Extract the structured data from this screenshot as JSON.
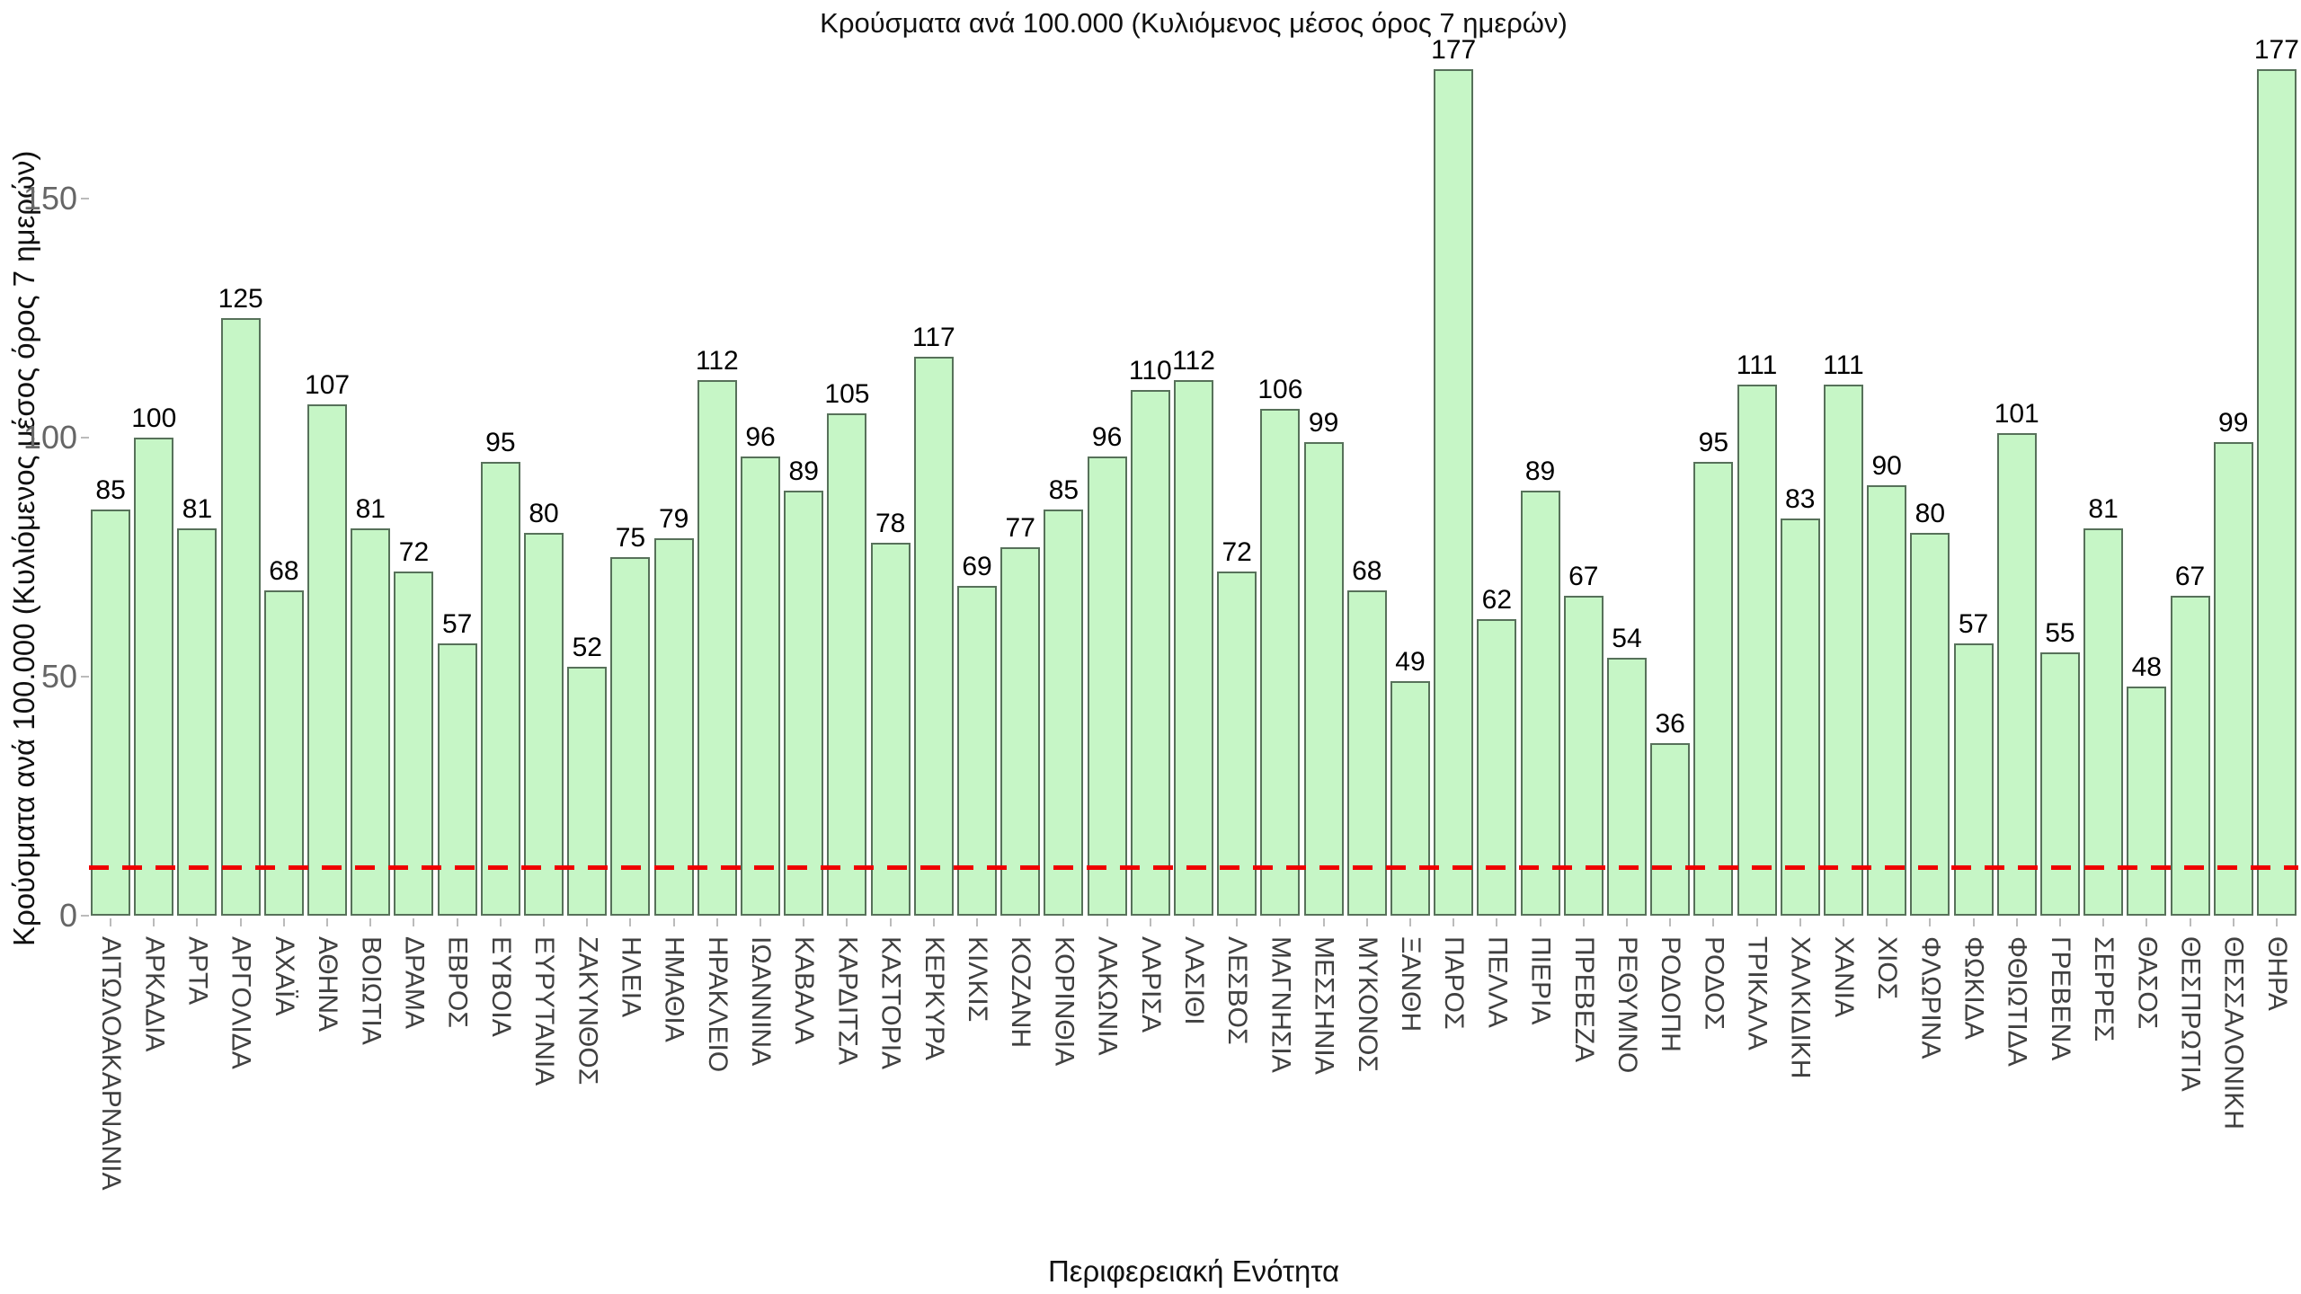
{
  "chart_data": {
    "type": "bar",
    "title": "Κρούσματα ανά 100.000 (Κυλιόμενος μέσος όρος 7 ημερών)",
    "xlabel": "Περιφερειακή Ενότητα",
    "ylabel": "Κρούσματα ανά 100.000 (Κυλιόμενος μέσος όρος 7 ημερών)",
    "categories": [
      "ΑΙΤΩΛΟΑΚΑΡΝΑΝΙΑ",
      "ΑΡΚΑΔΙΑ",
      "ΑΡΤΑ",
      "ΑΡΓΟΛΙΔΑ",
      "ΑΧΑΪΑ",
      "ΑΘΗΝΑ",
      "ΒΟΙΩΤΙΑ",
      "ΔΡΑΜΑ",
      "ΕΒΡΟΣ",
      "ΕΥΒΟΙΑ",
      "ΕΥΡΥΤΑΝΙΑ",
      "ΖΑΚΥΝΘΟΣ",
      "ΗΛΕΙΑ",
      "ΗΜΑΘΙΑ",
      "ΗΡΑΚΛΕΙΟ",
      "ΙΩΑΝΝΙΝΑ",
      "ΚΑΒΑΛΑ",
      "ΚΑΡΔΙΤΣΑ",
      "ΚΑΣΤΟΡΙΑ",
      "ΚΕΡΚΥΡΑ",
      "ΚΙΛΚΙΣ",
      "ΚΟΖΑΝΗ",
      "ΚΟΡΙΝΘΙΑ",
      "ΛΑΚΩΝΙΑ",
      "ΛΑΡΙΣΑ",
      "ΛΑΣΙΘΙ",
      "ΛΕΣΒΟΣ",
      "ΜΑΓΝΗΣΙΑ",
      "ΜΕΣΣΗΝΙΑ",
      "ΜΥΚΟΝΟΣ",
      "ΞΑΝΘΗ",
      "ΠΑΡΟΣ",
      "ΠΕΛΛΑ",
      "ΠΙΕΡΙΑ",
      "ΠΡΕΒΕΖΑ",
      "ΡΕΘΥΜΝΟ",
      "ΡΟΔΟΠΗ",
      "ΡΟΔΟΣ",
      "ΤΡΙΚΑΛΑ",
      "ΧΑΛΚΙΔΙΚΗ",
      "ΧΑΝΙΑ",
      "ΧΙΟΣ",
      "ΦΛΩΡΙΝΑ",
      "ΦΩΚΙΔΑ",
      "ΦΘΙΩΤΙΔΑ",
      "ΓΡΕΒΕΝΑ",
      "ΣΕΡΡΕΣ",
      "ΘΑΣΟΣ",
      "ΘΕΣΠΡΩΤΙΑ",
      "ΘΕΣΣΑΛΟΝΙΚΗ",
      "ΘΗΡΑ"
    ],
    "values": [
      85,
      100,
      81,
      125,
      68,
      107,
      81,
      72,
      57,
      95,
      80,
      52,
      75,
      79,
      112,
      96,
      89,
      105,
      78,
      117,
      69,
      77,
      85,
      96,
      110,
      112,
      72,
      106,
      99,
      68,
      49,
      177,
      62,
      89,
      67,
      54,
      36,
      95,
      111,
      83,
      111,
      90,
      80,
      57,
      101,
      55,
      81,
      48,
      67,
      99,
      177
    ],
    "yticks": [
      0,
      50,
      100,
      150
    ],
    "ylim": [
      0,
      182
    ],
    "grid": false,
    "legend": "none",
    "bar_fill_color": "#c6f6c6",
    "bar_edge_color": "#57715a",
    "value_label_color": "#000000",
    "axis_tick_color": "#666666",
    "category_label_color": "#404040",
    "threshold_line": {
      "value": 10,
      "color": "#ee0000",
      "style": "dashed"
    }
  }
}
